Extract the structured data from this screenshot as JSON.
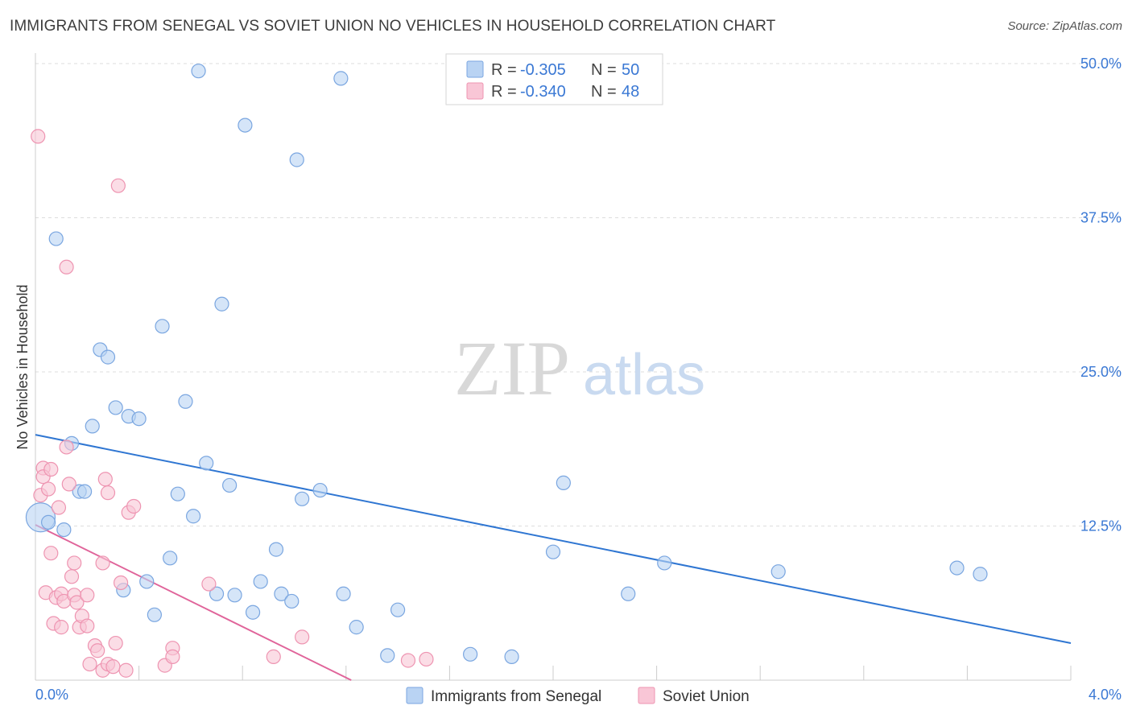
{
  "title": "IMMIGRANTS FROM SENEGAL VS SOVIET UNION NO VEHICLES IN HOUSEHOLD CORRELATION CHART",
  "source": "Source: ZipAtlas.com",
  "watermark": {
    "zip": "ZIP",
    "atlas": "atlas"
  },
  "colors": {
    "blue_fill": "#b9d3f3",
    "blue_stroke": "#7aa6e0",
    "blue_line": "#2f76d2",
    "pink_fill": "#f9c6d6",
    "pink_stroke": "#ee94b1",
    "pink_line": "#e0649a",
    "tick_text": "#3a78d4",
    "grid": "#dddddd"
  },
  "stats": {
    "rows": [
      {
        "r_label": "R =",
        "r_value": "-0.305",
        "n_label": "N =",
        "n_value": "50",
        "series": "senegal"
      },
      {
        "r_label": "R =",
        "r_value": "-0.340",
        "n_label": "N =",
        "n_value": "48",
        "series": "soviet"
      }
    ]
  },
  "chart_data": {
    "type": "scatter",
    "title": "IMMIGRANTS FROM SENEGAL VS SOVIET UNION NO VEHICLES IN HOUSEHOLD CORRELATION CHART",
    "xlabel": "",
    "ylabel": "No Vehicles in Household",
    "xlim": [
      0,
      4.0
    ],
    "ylim": [
      0,
      50
    ],
    "x_tick_labels": [
      {
        "value": 0,
        "label": "0.0%"
      },
      {
        "value": 4.0,
        "label": "4.0%"
      }
    ],
    "y_ticks": [
      {
        "value": 12.5,
        "label": "12.5%"
      },
      {
        "value": 25.0,
        "label": "25.0%"
      },
      {
        "value": 37.5,
        "label": "37.5%"
      },
      {
        "value": 50.0,
        "label": "50.0%"
      }
    ],
    "grid": true,
    "legend_position": "bottom-center",
    "series": [
      {
        "name": "Immigrants from Senegal",
        "key": "senegal",
        "points": [
          {
            "x": 0.02,
            "y": 13.2,
            "big": true
          },
          {
            "x": 0.05,
            "y": 12.8
          },
          {
            "x": 0.08,
            "y": 35.8
          },
          {
            "x": 0.11,
            "y": 12.2
          },
          {
            "x": 0.14,
            "y": 19.2
          },
          {
            "x": 0.17,
            "y": 15.3
          },
          {
            "x": 0.19,
            "y": 15.3
          },
          {
            "x": 0.22,
            "y": 20.6
          },
          {
            "x": 0.25,
            "y": 26.8
          },
          {
            "x": 0.28,
            "y": 26.2
          },
          {
            "x": 0.31,
            "y": 22.1
          },
          {
            "x": 0.34,
            "y": 7.3
          },
          {
            "x": 0.36,
            "y": 21.4
          },
          {
            "x": 0.4,
            "y": 21.2
          },
          {
            "x": 0.43,
            "y": 8.0
          },
          {
            "x": 0.46,
            "y": 5.3
          },
          {
            "x": 0.49,
            "y": 28.7
          },
          {
            "x": 0.52,
            "y": 9.9
          },
          {
            "x": 0.55,
            "y": 15.1
          },
          {
            "x": 0.58,
            "y": 22.6
          },
          {
            "x": 0.61,
            "y": 13.3
          },
          {
            "x": 0.63,
            "y": 49.4
          },
          {
            "x": 0.66,
            "y": 17.6
          },
          {
            "x": 0.7,
            "y": 7.0
          },
          {
            "x": 0.72,
            "y": 30.5
          },
          {
            "x": 0.75,
            "y": 15.8
          },
          {
            "x": 0.77,
            "y": 6.9
          },
          {
            "x": 0.81,
            "y": 45.0
          },
          {
            "x": 0.84,
            "y": 5.5
          },
          {
            "x": 0.87,
            "y": 8.0
          },
          {
            "x": 0.93,
            "y": 10.6
          },
          {
            "x": 0.95,
            "y": 7.0
          },
          {
            "x": 0.99,
            "y": 6.4
          },
          {
            "x": 1.01,
            "y": 42.2
          },
          {
            "x": 1.03,
            "y": 14.7
          },
          {
            "x": 1.1,
            "y": 15.4
          },
          {
            "x": 1.18,
            "y": 48.8
          },
          {
            "x": 1.19,
            "y": 7.0
          },
          {
            "x": 1.24,
            "y": 4.3
          },
          {
            "x": 1.36,
            "y": 2.0
          },
          {
            "x": 1.4,
            "y": 5.7
          },
          {
            "x": 1.68,
            "y": 2.1
          },
          {
            "x": 1.84,
            "y": 1.9
          },
          {
            "x": 2.0,
            "y": 10.4
          },
          {
            "x": 2.04,
            "y": 16.0
          },
          {
            "x": 2.29,
            "y": 7.0
          },
          {
            "x": 2.43,
            "y": 9.5
          },
          {
            "x": 2.87,
            "y": 8.8
          },
          {
            "x": 3.56,
            "y": 9.1
          },
          {
            "x": 3.65,
            "y": 8.6
          }
        ],
        "trend": {
          "x0": 0.0,
          "y0": 19.9,
          "x1": 4.0,
          "y1": 3.0
        }
      },
      {
        "name": "Soviet Union",
        "key": "soviet",
        "points": [
          {
            "x": 0.01,
            "y": 44.1
          },
          {
            "x": 0.02,
            "y": 15.0
          },
          {
            "x": 0.03,
            "y": 17.2
          },
          {
            "x": 0.03,
            "y": 16.5
          },
          {
            "x": 0.04,
            "y": 7.1
          },
          {
            "x": 0.05,
            "y": 15.5
          },
          {
            "x": 0.06,
            "y": 10.3
          },
          {
            "x": 0.06,
            "y": 17.1
          },
          {
            "x": 0.07,
            "y": 4.6
          },
          {
            "x": 0.08,
            "y": 6.7
          },
          {
            "x": 0.09,
            "y": 14.0
          },
          {
            "x": 0.1,
            "y": 4.3
          },
          {
            "x": 0.1,
            "y": 7.0
          },
          {
            "x": 0.11,
            "y": 6.4
          },
          {
            "x": 0.12,
            "y": 33.5
          },
          {
            "x": 0.12,
            "y": 18.9
          },
          {
            "x": 0.13,
            "y": 15.9
          },
          {
            "x": 0.14,
            "y": 8.4
          },
          {
            "x": 0.15,
            "y": 9.5
          },
          {
            "x": 0.15,
            "y": 6.9
          },
          {
            "x": 0.16,
            "y": 6.3
          },
          {
            "x": 0.17,
            "y": 4.3
          },
          {
            "x": 0.18,
            "y": 5.2
          },
          {
            "x": 0.2,
            "y": 6.9
          },
          {
            "x": 0.2,
            "y": 4.4
          },
          {
            "x": 0.21,
            "y": 1.3
          },
          {
            "x": 0.23,
            "y": 2.8
          },
          {
            "x": 0.24,
            "y": 2.4
          },
          {
            "x": 0.26,
            "y": 0.8
          },
          {
            "x": 0.26,
            "y": 9.5
          },
          {
            "x": 0.27,
            "y": 16.3
          },
          {
            "x": 0.28,
            "y": 1.3
          },
          {
            "x": 0.28,
            "y": 15.2
          },
          {
            "x": 0.3,
            "y": 1.1
          },
          {
            "x": 0.31,
            "y": 3.0
          },
          {
            "x": 0.32,
            "y": 40.1
          },
          {
            "x": 0.33,
            "y": 7.9
          },
          {
            "x": 0.35,
            "y": 0.8
          },
          {
            "x": 0.36,
            "y": 13.6
          },
          {
            "x": 0.38,
            "y": 14.1
          },
          {
            "x": 0.5,
            "y": 1.2
          },
          {
            "x": 0.53,
            "y": 2.6
          },
          {
            "x": 0.53,
            "y": 1.9
          },
          {
            "x": 0.67,
            "y": 7.8
          },
          {
            "x": 0.92,
            "y": 1.9
          },
          {
            "x": 1.03,
            "y": 3.5
          },
          {
            "x": 1.44,
            "y": 1.6
          },
          {
            "x": 1.51,
            "y": 1.7
          }
        ],
        "trend": {
          "x0": 0.0,
          "y0": 12.6,
          "x1": 1.22,
          "y1": 0.0
        }
      }
    ]
  }
}
